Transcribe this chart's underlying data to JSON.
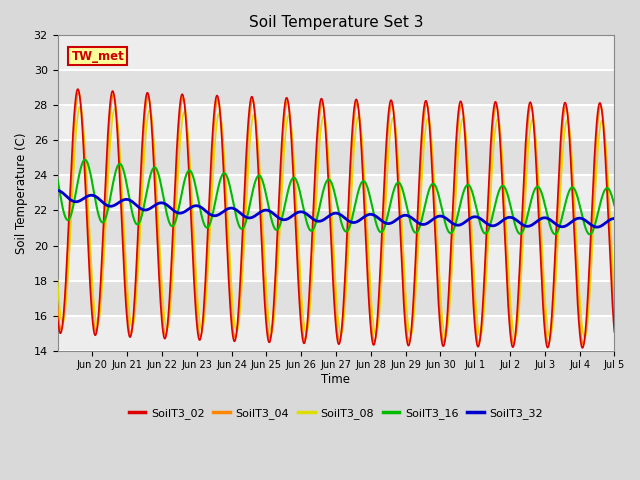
{
  "title": "Soil Temperature Set 3",
  "ylabel": "Soil Temperature (C)",
  "xlabel": "Time",
  "ylim": [
    14,
    32
  ],
  "yticks": [
    14,
    16,
    18,
    20,
    22,
    24,
    26,
    28,
    30,
    32
  ],
  "annotation_text": "TW_met",
  "annotation_color": "#cc0000",
  "annotation_bg": "#ffff99",
  "annotation_edge": "#cc0000",
  "plot_bg": "#e0e0e0",
  "grid_color": "#ffffff",
  "legend_labels": [
    "SoilT3_02",
    "SoilT3_04",
    "SoilT3_08",
    "SoilT3_16",
    "SoilT3_32"
  ],
  "line_colors": [
    "#dd0000",
    "#ff8800",
    "#dddd00",
    "#00bb00",
    "#0000cc"
  ],
  "line_widths": [
    1.2,
    1.2,
    1.2,
    1.5,
    2.0
  ],
  "tick_labels": [
    "Jun 20",
    "Jun 21",
    "Jun 22",
    "Jun 23",
    "Jun 24",
    "Jun 25",
    "Jun 26",
    "Jun 27",
    "Jun 28",
    "Jun 29",
    "Jun 30",
    "Jul 1",
    "Jul 2",
    "Jul 3",
    "Jul 4",
    "Jul 5"
  ],
  "tick_positions": [
    1,
    2,
    3,
    4,
    5,
    6,
    7,
    8,
    9,
    10,
    11,
    12,
    13,
    14,
    15,
    16
  ]
}
